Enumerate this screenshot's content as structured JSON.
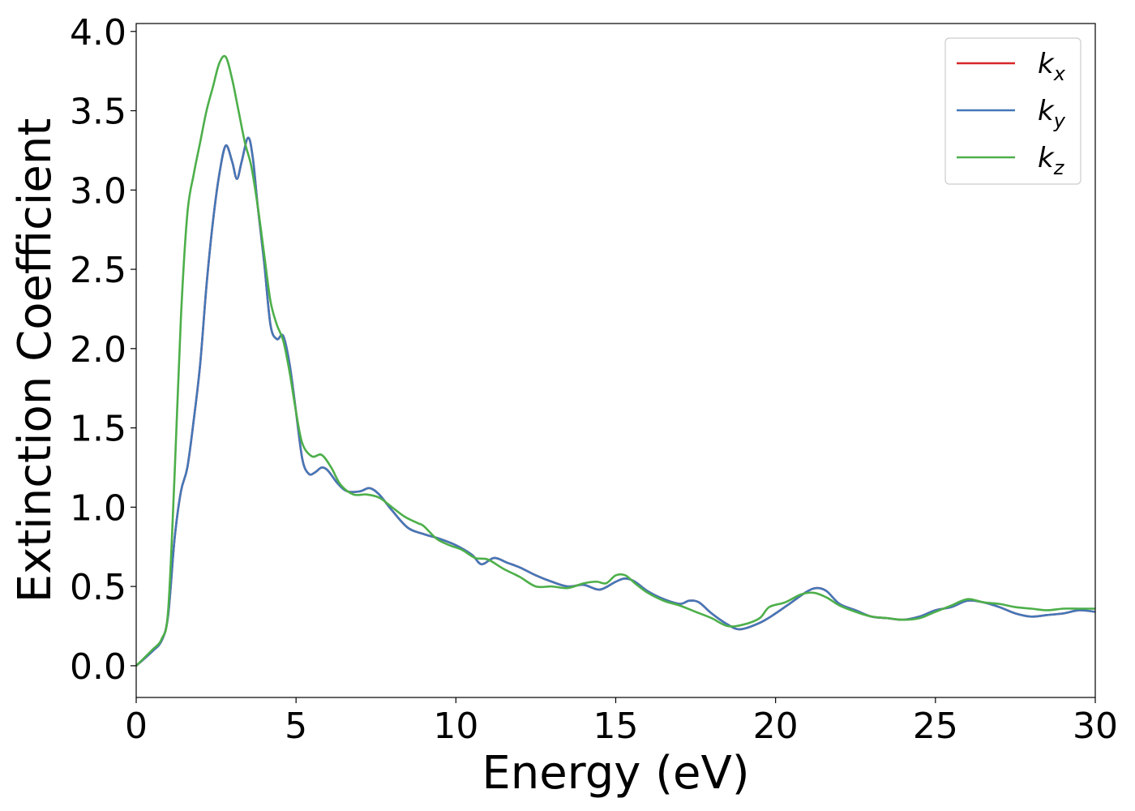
{
  "chart_data": {
    "type": "line",
    "title": "",
    "xlabel": "Energy (eV)",
    "ylabel": "Extinction Coefficient",
    "xlim": [
      0,
      30
    ],
    "ylim": [
      -0.2,
      4.05
    ],
    "xticks": [
      0,
      5,
      10,
      15,
      20,
      25,
      30
    ],
    "xtick_labels": [
      "0",
      "5",
      "10",
      "15",
      "20",
      "25",
      "30"
    ],
    "yticks": [
      0.0,
      0.5,
      1.0,
      1.5,
      2.0,
      2.5,
      3.0,
      3.5,
      4.0
    ],
    "ytick_labels": [
      "0.0",
      "0.5",
      "1.0",
      "1.5",
      "2.0",
      "2.5",
      "3.0",
      "3.5",
      "4.0"
    ],
    "grid": false,
    "legend_position": "top-right",
    "series": [
      {
        "name": "k",
        "subscript": "x",
        "color": "#d62728",
        "x": [
          0,
          0.5,
          0.8,
          1.0,
          1.2,
          1.4,
          1.6,
          1.8,
          2.0,
          2.2,
          2.4,
          2.6,
          2.8,
          3.0,
          3.15,
          3.3,
          3.5,
          3.65,
          3.8,
          4.0,
          4.2,
          4.4,
          4.6,
          4.8,
          5.0,
          5.2,
          5.4,
          5.6,
          5.8,
          6.0,
          6.3,
          6.6,
          7.0,
          7.3,
          7.6,
          8.0,
          8.5,
          9.0,
          9.5,
          10.0,
          10.5,
          10.8,
          11.2,
          11.6,
          12.0,
          12.5,
          13.0,
          13.5,
          14.0,
          14.5,
          15.0,
          15.3,
          15.6,
          16.0,
          16.5,
          17.0,
          17.3,
          17.6,
          18.0,
          18.5,
          18.9,
          19.5,
          20.0,
          20.5,
          21.0,
          21.3,
          21.6,
          22.0,
          22.5,
          23.0,
          23.5,
          24.0,
          24.5,
          25.0,
          25.5,
          26.0,
          26.5,
          27.0,
          27.5,
          28.0,
          28.5,
          29.0,
          29.5,
          30.0
        ],
        "y": [
          0.0,
          0.09,
          0.16,
          0.32,
          0.8,
          1.1,
          1.25,
          1.55,
          1.9,
          2.4,
          2.8,
          3.1,
          3.28,
          3.18,
          3.07,
          3.18,
          3.33,
          3.2,
          2.9,
          2.55,
          2.15,
          2.06,
          2.08,
          1.9,
          1.6,
          1.3,
          1.21,
          1.22,
          1.25,
          1.23,
          1.15,
          1.1,
          1.1,
          1.12,
          1.08,
          0.98,
          0.87,
          0.83,
          0.8,
          0.76,
          0.7,
          0.64,
          0.68,
          0.65,
          0.62,
          0.57,
          0.53,
          0.5,
          0.51,
          0.48,
          0.53,
          0.55,
          0.53,
          0.47,
          0.42,
          0.39,
          0.41,
          0.4,
          0.33,
          0.26,
          0.23,
          0.27,
          0.33,
          0.4,
          0.47,
          0.49,
          0.47,
          0.39,
          0.35,
          0.31,
          0.3,
          0.29,
          0.31,
          0.35,
          0.37,
          0.41,
          0.4,
          0.37,
          0.33,
          0.31,
          0.32,
          0.33,
          0.35,
          0.34
        ]
      },
      {
        "name": "k",
        "subscript": "y",
        "color": "#4477b8",
        "x": [
          0,
          0.5,
          0.8,
          1.0,
          1.2,
          1.4,
          1.6,
          1.8,
          2.0,
          2.2,
          2.4,
          2.6,
          2.8,
          3.0,
          3.15,
          3.3,
          3.5,
          3.65,
          3.8,
          4.0,
          4.2,
          4.4,
          4.6,
          4.8,
          5.0,
          5.2,
          5.4,
          5.6,
          5.8,
          6.0,
          6.3,
          6.6,
          7.0,
          7.3,
          7.6,
          8.0,
          8.5,
          9.0,
          9.5,
          10.0,
          10.5,
          10.8,
          11.2,
          11.6,
          12.0,
          12.5,
          13.0,
          13.5,
          14.0,
          14.5,
          15.0,
          15.3,
          15.6,
          16.0,
          16.5,
          17.0,
          17.3,
          17.6,
          18.0,
          18.5,
          18.9,
          19.5,
          20.0,
          20.5,
          21.0,
          21.3,
          21.6,
          22.0,
          22.5,
          23.0,
          23.5,
          24.0,
          24.5,
          25.0,
          25.5,
          26.0,
          26.5,
          27.0,
          27.5,
          28.0,
          28.5,
          29.0,
          29.5,
          30.0
        ],
        "y": [
          0.0,
          0.09,
          0.16,
          0.32,
          0.8,
          1.1,
          1.25,
          1.55,
          1.9,
          2.4,
          2.8,
          3.1,
          3.28,
          3.18,
          3.07,
          3.18,
          3.33,
          3.2,
          2.9,
          2.55,
          2.15,
          2.06,
          2.08,
          1.9,
          1.6,
          1.3,
          1.21,
          1.22,
          1.25,
          1.23,
          1.15,
          1.1,
          1.1,
          1.12,
          1.08,
          0.98,
          0.87,
          0.83,
          0.8,
          0.76,
          0.7,
          0.64,
          0.68,
          0.65,
          0.62,
          0.57,
          0.53,
          0.5,
          0.51,
          0.48,
          0.53,
          0.55,
          0.53,
          0.47,
          0.42,
          0.39,
          0.41,
          0.4,
          0.33,
          0.26,
          0.23,
          0.27,
          0.33,
          0.4,
          0.47,
          0.49,
          0.47,
          0.39,
          0.35,
          0.31,
          0.3,
          0.29,
          0.31,
          0.35,
          0.37,
          0.41,
          0.4,
          0.37,
          0.33,
          0.31,
          0.32,
          0.33,
          0.35,
          0.34
        ]
      },
      {
        "name": "k",
        "subscript": "z",
        "color": "#4daf4a",
        "x": [
          0,
          0.5,
          0.8,
          1.0,
          1.2,
          1.4,
          1.6,
          1.8,
          2.0,
          2.2,
          2.4,
          2.6,
          2.8,
          3.0,
          3.2,
          3.4,
          3.6,
          3.8,
          4.0,
          4.2,
          4.4,
          4.6,
          4.8,
          5.0,
          5.2,
          5.5,
          5.8,
          6.1,
          6.4,
          6.8,
          7.2,
          7.6,
          8.0,
          8.4,
          8.8,
          9.0,
          9.4,
          9.8,
          10.2,
          10.6,
          11.0,
          11.5,
          12.0,
          12.5,
          13.0,
          13.5,
          14.0,
          14.4,
          14.7,
          15.0,
          15.3,
          15.6,
          16.0,
          16.5,
          17.0,
          17.5,
          18.0,
          18.5,
          19.0,
          19.5,
          19.8,
          20.3,
          20.8,
          21.2,
          21.6,
          22.0,
          22.5,
          23.0,
          23.5,
          24.0,
          24.5,
          25.0,
          25.5,
          26.0,
          26.5,
          27.0,
          27.5,
          28.0,
          28.5,
          29.0,
          29.5,
          30.0
        ],
        "y": [
          0.0,
          0.1,
          0.17,
          0.35,
          1.2,
          2.2,
          2.85,
          3.1,
          3.3,
          3.5,
          3.65,
          3.8,
          3.84,
          3.7,
          3.5,
          3.3,
          3.15,
          2.9,
          2.6,
          2.3,
          2.15,
          2.05,
          1.85,
          1.6,
          1.4,
          1.32,
          1.33,
          1.25,
          1.14,
          1.08,
          1.08,
          1.06,
          1.0,
          0.94,
          0.9,
          0.88,
          0.8,
          0.76,
          0.73,
          0.68,
          0.67,
          0.61,
          0.56,
          0.5,
          0.5,
          0.49,
          0.52,
          0.53,
          0.52,
          0.57,
          0.57,
          0.52,
          0.46,
          0.41,
          0.38,
          0.34,
          0.3,
          0.25,
          0.26,
          0.3,
          0.37,
          0.4,
          0.45,
          0.46,
          0.43,
          0.38,
          0.34,
          0.31,
          0.3,
          0.29,
          0.3,
          0.34,
          0.38,
          0.42,
          0.4,
          0.39,
          0.37,
          0.36,
          0.35,
          0.36,
          0.36,
          0.36
        ]
      }
    ]
  }
}
